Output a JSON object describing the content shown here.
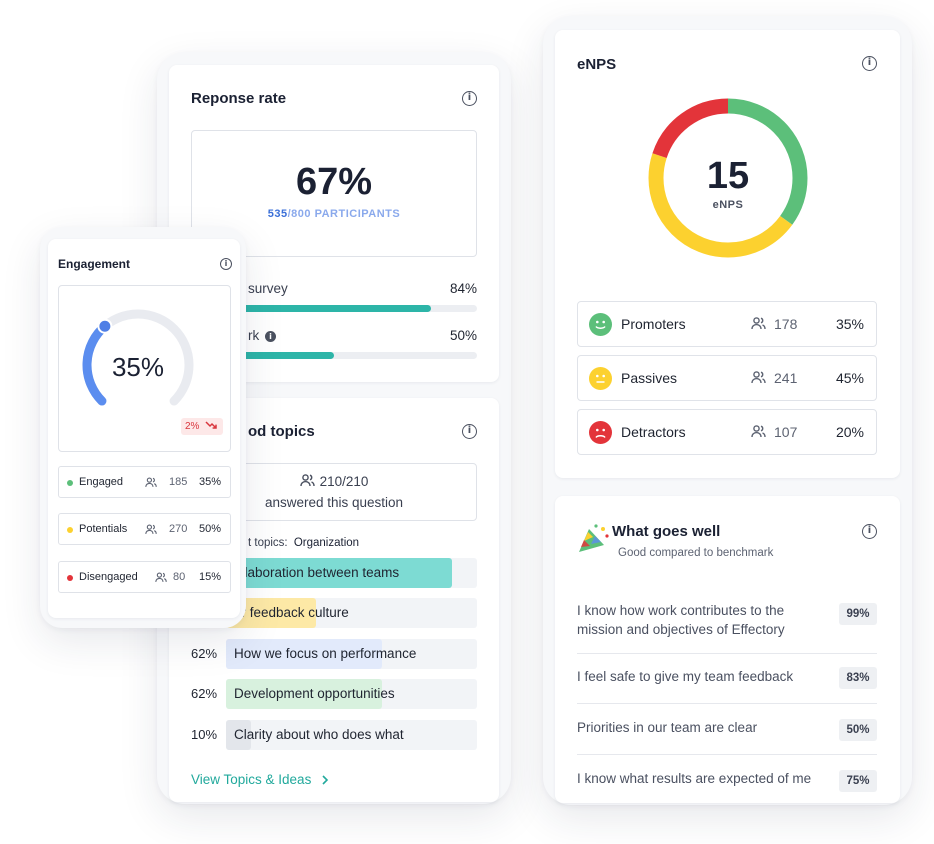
{
  "response_rate": {
    "title": "Reponse rate",
    "percent": "67%",
    "participants_answered": "535",
    "participants_suffix": "/800 PARTICIPANTS",
    "bars": [
      {
        "label": "survey",
        "value_label": "84%",
        "fraction": 0.84
      },
      {
        "label": "rk",
        "value_label": "50%",
        "fraction": 0.5
      }
    ]
  },
  "topics": {
    "title": "od topics",
    "answered_count": "210/210",
    "answered_text": "answered this question",
    "filter_label": "t topics:",
    "filter_value": "Organization",
    "items": [
      {
        "pct": "",
        "label": "ollaboration between teams",
        "fraction": 0.9,
        "color": "#7ddbd3"
      },
      {
        "pct": "",
        "label": "ur feedback culture",
        "fraction": 0.36,
        "color": "#fde9a6"
      },
      {
        "pct": "62%",
        "label": "How we focus on performance",
        "fraction": 0.62,
        "color": "#e2eafb"
      },
      {
        "pct": "62%",
        "label": "Development opportunities",
        "fraction": 0.62,
        "color": "#d8f1de"
      },
      {
        "pct": "10%",
        "label": "Clarity about who does what",
        "fraction": 0.1,
        "color": "#e3e6eb"
      }
    ],
    "link": "View Topics & Ideas",
    "link_icon": "chevron-right-icon"
  },
  "enps": {
    "title": "eNPS",
    "score": "15",
    "score_label": "eNPS",
    "segments": [
      {
        "name": "Promoters",
        "count": "178",
        "pct": "35%",
        "fraction": 0.35,
        "color": "#5cbf7a",
        "face": "smile"
      },
      {
        "name": "Passives",
        "count": "241",
        "pct": "45%",
        "fraction": 0.45,
        "color": "#fcd12f",
        "face": "neutral"
      },
      {
        "name": "Detractors",
        "count": "107",
        "pct": "20%",
        "fraction": 0.2,
        "color": "#e3343a",
        "face": "sad"
      }
    ]
  },
  "what_goes_well": {
    "title": "What goes well",
    "subtitle": "Good compared to benchmark",
    "items": [
      {
        "text": "I know how work contributes to the mission and objectives of Effectory",
        "pct": "99%"
      },
      {
        "text": "I feel safe to give my team feedback",
        "pct": "83%"
      },
      {
        "text": "Priorities in our team are clear",
        "pct": "50%"
      },
      {
        "text": "I know what results are expected of me",
        "pct": "75%"
      }
    ]
  },
  "engagement": {
    "title": "Engagement",
    "percent": "35%",
    "fraction": 0.35,
    "trend": "2%",
    "trend_icon": "trend-down-icon",
    "rows": [
      {
        "label": "Engaged",
        "count": "185",
        "pct": "35%",
        "color": "#5cbf7a"
      },
      {
        "label": "Potentials",
        "count": "270",
        "pct": "50%",
        "color": "#fcd12f"
      },
      {
        "label": "Disengaged",
        "count": "80",
        "pct": "15%",
        "color": "#e3343a"
      }
    ]
  },
  "colors": {
    "teal": "#2db5a8",
    "blue": "#5b8def",
    "link": "#21a99c"
  }
}
